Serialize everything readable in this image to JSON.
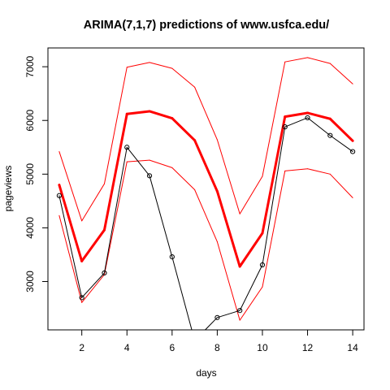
{
  "chart_data": {
    "type": "line",
    "title": "ARIMA(7,1,7) predictions of www.usfca.edu/",
    "xlabel": "days",
    "ylabel": "pageviews",
    "xlim": [
      0.5,
      14.5
    ],
    "ylim": [
      2100,
      7350
    ],
    "x_ticks": [
      2,
      4,
      6,
      8,
      10,
      12,
      14
    ],
    "y_ticks": [
      3000,
      4000,
      5000,
      6000,
      7000
    ],
    "grid": false,
    "legend": "none",
    "x": [
      1,
      2,
      3,
      4,
      5,
      6,
      7,
      8,
      9,
      10,
      11,
      12,
      13,
      14
    ],
    "series": [
      {
        "role": "prediction",
        "color": "#ff0000",
        "line_width": 3,
        "markers": false,
        "values": [
          4800,
          3380,
          3960,
          6120,
          6170,
          6040,
          5630,
          4680,
          3280,
          3900,
          6070,
          6140,
          6030,
          5620
        ]
      },
      {
        "role": "upper-bound",
        "color": "#ff0000",
        "line_width": 1,
        "markers": false,
        "values": [
          5420,
          4130,
          4820,
          6990,
          7080,
          6970,
          6620,
          5640,
          4260,
          4960,
          7090,
          7170,
          7060,
          6680
        ]
      },
      {
        "role": "lower-bound",
        "color": "#ff0000",
        "line_width": 1,
        "markers": false,
        "values": [
          4230,
          2610,
          3130,
          5230,
          5260,
          5120,
          4710,
          3740,
          2280,
          2900,
          5060,
          5100,
          5000,
          4560
        ]
      },
      {
        "role": "actual",
        "color": "#000000",
        "line_width": 1,
        "markers": true,
        "values": [
          4600,
          2700,
          3160,
          5500,
          4970,
          3460,
          1900,
          2330,
          2460,
          3310,
          5880,
          6050,
          5720,
          5420
        ]
      }
    ]
  }
}
